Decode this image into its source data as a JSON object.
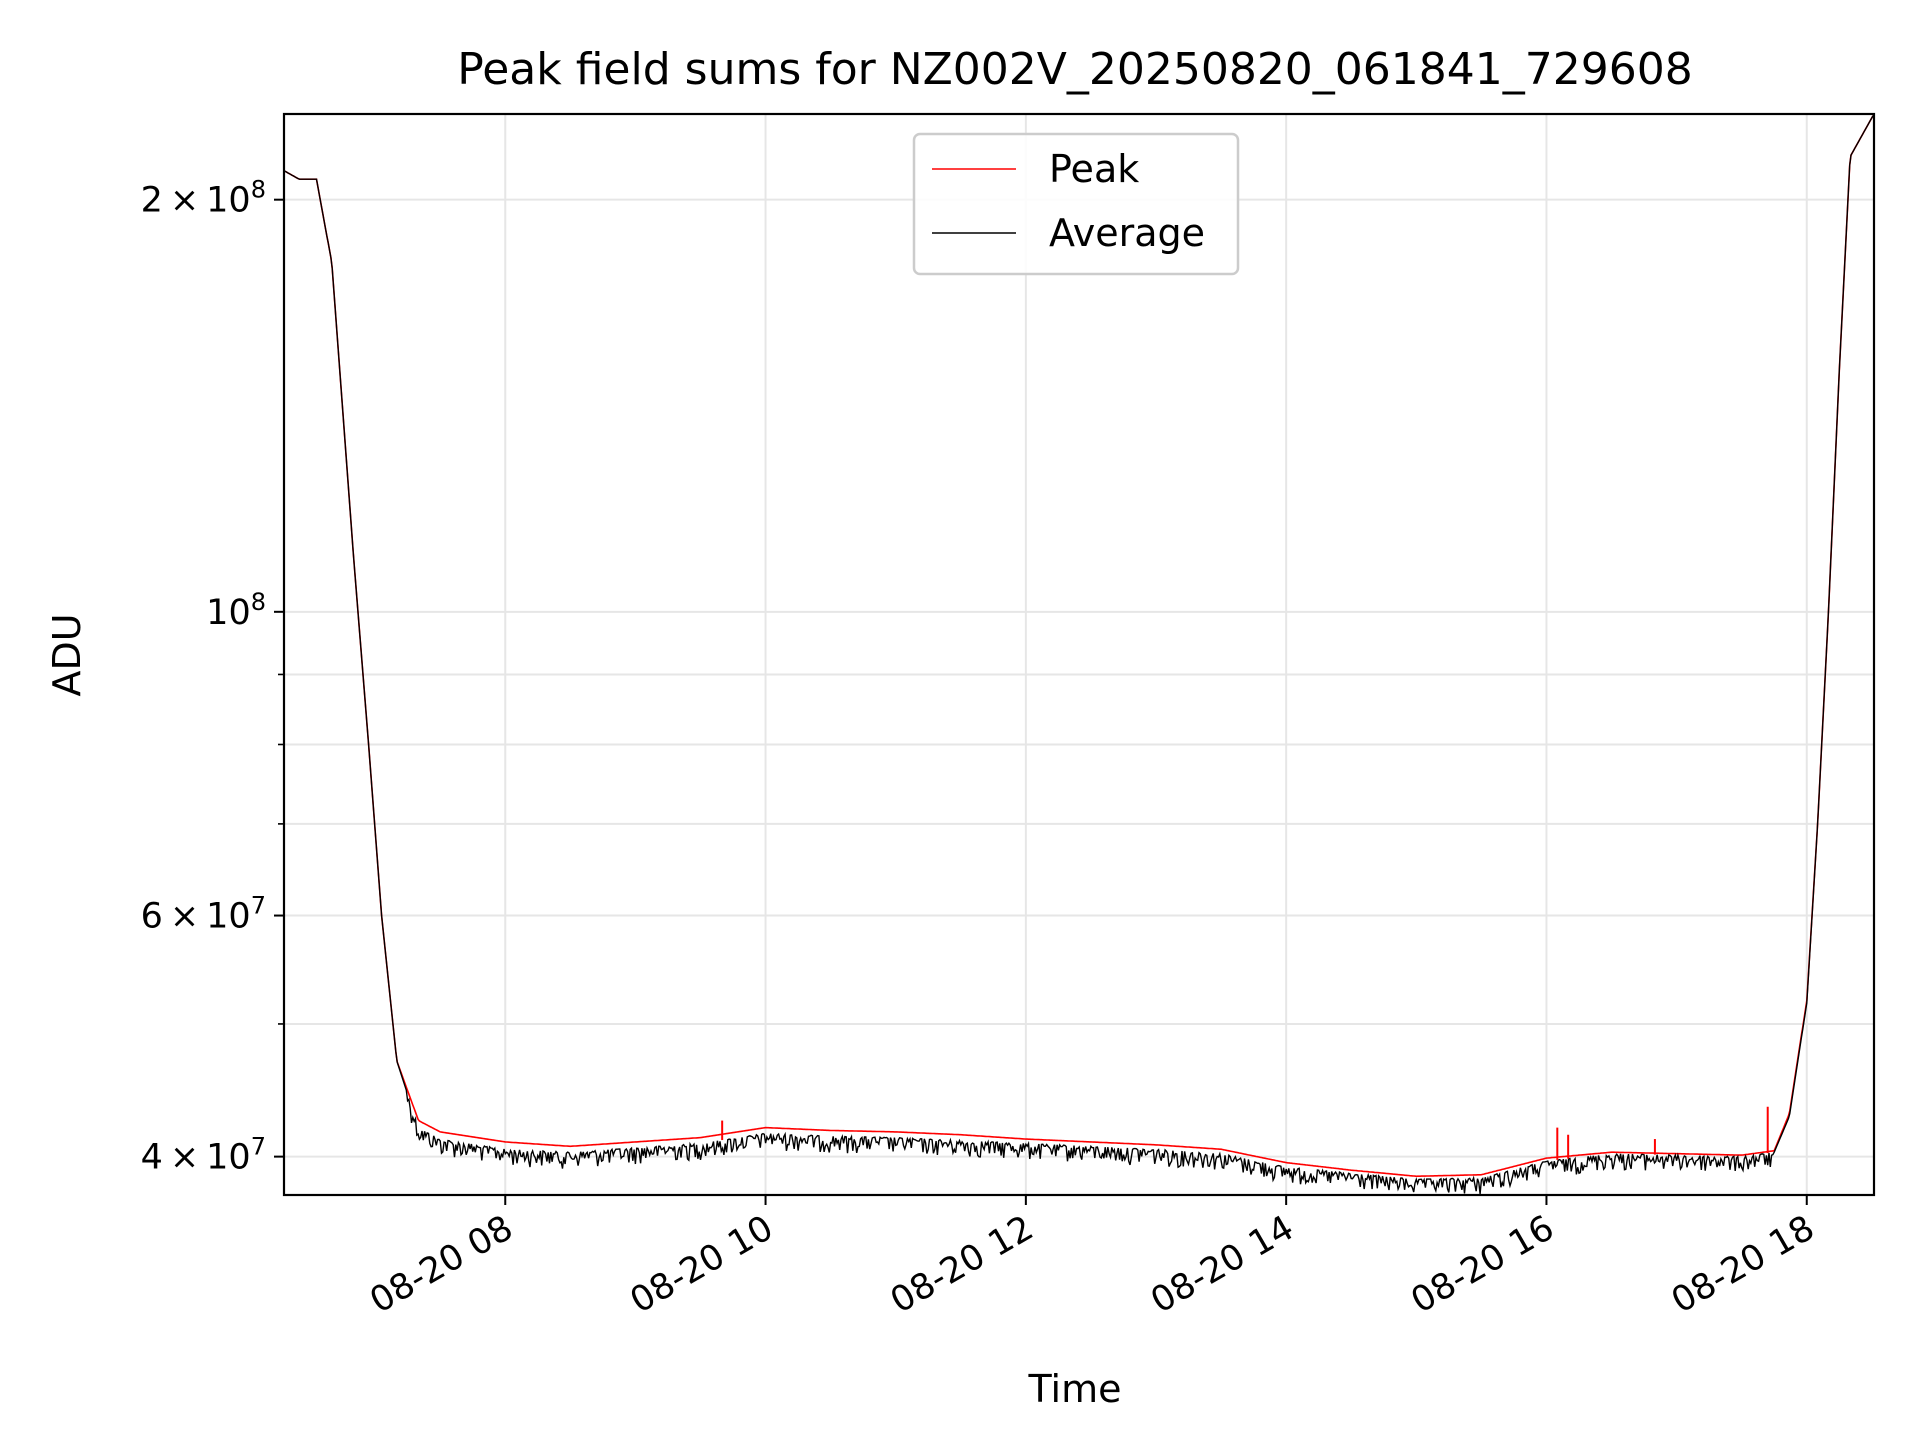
{
  "chart_data": {
    "type": "line",
    "title": "Peak field sums for NZ002V_20250820_061841_729608",
    "xlabel": "Time",
    "ylabel": "ADU",
    "xscale": "time",
    "yscale": "log",
    "xlim": [
      "2025-08-20 06:18",
      "2025-08-20 18:31"
    ],
    "ylim": [
      37500000,
      231000000
    ],
    "grid": true,
    "legend_placement": "top-center",
    "x_ticks": [
      "08-20 08",
      "08-20 10",
      "08-20 12",
      "08-20 14",
      "08-20 16",
      "08-20 18"
    ],
    "y_ticks": [
      {
        "value": 40000000,
        "mantissa": "4",
        "exponent": "7"
      },
      {
        "value": 60000000,
        "mantissa": "6",
        "exponent": "7"
      },
      {
        "value": 100000000,
        "mantissa": "",
        "exponent": "8"
      },
      {
        "value": 200000000,
        "mantissa": "2",
        "exponent": "8"
      }
    ],
    "times_symbol": "×",
    "base": "10",
    "x": [
      "2025-08-20 06:18",
      "2025-08-20 06:25",
      "2025-08-20 06:33",
      "2025-08-20 06:40",
      "2025-08-20 06:50",
      "2025-08-20 06:57",
      "2025-08-20 07:03",
      "2025-08-20 07:10",
      "2025-08-20 07:20",
      "2025-08-20 07:30",
      "2025-08-20 08:00",
      "2025-08-20 08:30",
      "2025-08-20 09:00",
      "2025-08-20 09:30",
      "2025-08-20 10:00",
      "2025-08-20 10:30",
      "2025-08-20 11:00",
      "2025-08-20 11:30",
      "2025-08-20 12:00",
      "2025-08-20 12:30",
      "2025-08-20 13:00",
      "2025-08-20 13:30",
      "2025-08-20 14:00",
      "2025-08-20 14:30",
      "2025-08-20 15:00",
      "2025-08-20 15:30",
      "2025-08-20 16:00",
      "2025-08-20 16:30",
      "2025-08-20 17:00",
      "2025-08-20 17:30",
      "2025-08-20 17:45",
      "2025-08-20 17:52",
      "2025-08-20 18:00",
      "2025-08-20 18:05",
      "2025-08-20 18:10",
      "2025-08-20 18:15",
      "2025-08-20 18:20",
      "2025-08-20 18:31"
    ],
    "series": [
      {
        "name": "Peak",
        "color": "#ff0000",
        "values": [
          210000000,
          207000000,
          207000000,
          180000000,
          110000000,
          80000000,
          60000000,
          47000000,
          42500000,
          41700000,
          41000000,
          40700000,
          41000000,
          41300000,
          42000000,
          41800000,
          41700000,
          41500000,
          41200000,
          41000000,
          40800000,
          40500000,
          39600000,
          39100000,
          38700000,
          38800000,
          39900000,
          40300000,
          40200000,
          40100000,
          40400000,
          43000000,
          52000000,
          70000000,
          100000000,
          150000000,
          215000000,
          231000000
        ]
      },
      {
        "name": "Average",
        "color": "#000000",
        "values": [
          210000000,
          207000000,
          207000000,
          180000000,
          110000000,
          80000000,
          60000000,
          47000000,
          42000000,
          41200000,
          40500000,
          40300000,
          40600000,
          40900000,
          41600000,
          41400000,
          41300000,
          41100000,
          40900000,
          40700000,
          40500000,
          40200000,
          39300000,
          38900000,
          38500000,
          38600000,
          39700000,
          40200000,
          40100000,
          40000000,
          40300000,
          42800000,
          51800000,
          70000000,
          100000000,
          150000000,
          215000000,
          231000000
        ]
      }
    ],
    "peak_spikes": [
      {
        "x": "2025-08-20 09:40",
        "y": 42500000
      },
      {
        "x": "2025-08-20 16:05",
        "y": 42000000
      },
      {
        "x": "2025-08-20 16:10",
        "y": 41500000
      },
      {
        "x": "2025-08-20 16:50",
        "y": 41200000
      },
      {
        "x": "2025-08-20 17:42",
        "y": 43500000
      }
    ]
  }
}
